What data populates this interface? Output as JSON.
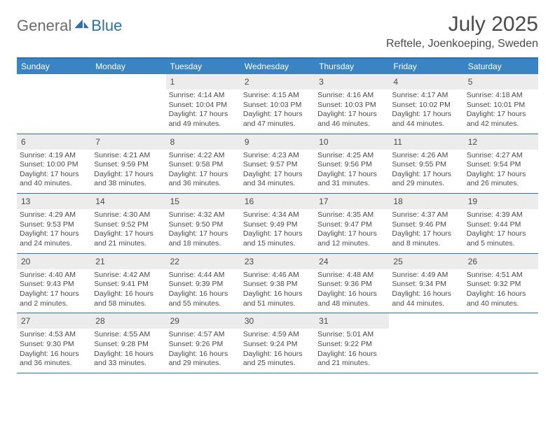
{
  "logo": {
    "text1": "General",
    "text2": "Blue",
    "icon_color": "#2f6fa8"
  },
  "title": "July 2025",
  "location": "Reftele, Joenkoeping, Sweden",
  "colors": {
    "header_bar": "#3b84c4",
    "border": "#2f6fa8",
    "daynum_bg": "#ececec",
    "text": "#4a4a4a",
    "logo_gray": "#6b6b6b"
  },
  "weekdays": [
    "Sunday",
    "Monday",
    "Tuesday",
    "Wednesday",
    "Thursday",
    "Friday",
    "Saturday"
  ],
  "weeks": [
    [
      null,
      null,
      {
        "n": "1",
        "sr": "4:14 AM",
        "ss": "10:04 PM",
        "dl": "17 hours and 49 minutes."
      },
      {
        "n": "2",
        "sr": "4:15 AM",
        "ss": "10:03 PM",
        "dl": "17 hours and 47 minutes."
      },
      {
        "n": "3",
        "sr": "4:16 AM",
        "ss": "10:03 PM",
        "dl": "17 hours and 46 minutes."
      },
      {
        "n": "4",
        "sr": "4:17 AM",
        "ss": "10:02 PM",
        "dl": "17 hours and 44 minutes."
      },
      {
        "n": "5",
        "sr": "4:18 AM",
        "ss": "10:01 PM",
        "dl": "17 hours and 42 minutes."
      }
    ],
    [
      {
        "n": "6",
        "sr": "4:19 AM",
        "ss": "10:00 PM",
        "dl": "17 hours and 40 minutes."
      },
      {
        "n": "7",
        "sr": "4:21 AM",
        "ss": "9:59 PM",
        "dl": "17 hours and 38 minutes."
      },
      {
        "n": "8",
        "sr": "4:22 AM",
        "ss": "9:58 PM",
        "dl": "17 hours and 36 minutes."
      },
      {
        "n": "9",
        "sr": "4:23 AM",
        "ss": "9:57 PM",
        "dl": "17 hours and 34 minutes."
      },
      {
        "n": "10",
        "sr": "4:25 AM",
        "ss": "9:56 PM",
        "dl": "17 hours and 31 minutes."
      },
      {
        "n": "11",
        "sr": "4:26 AM",
        "ss": "9:55 PM",
        "dl": "17 hours and 29 minutes."
      },
      {
        "n": "12",
        "sr": "4:27 AM",
        "ss": "9:54 PM",
        "dl": "17 hours and 26 minutes."
      }
    ],
    [
      {
        "n": "13",
        "sr": "4:29 AM",
        "ss": "9:53 PM",
        "dl": "17 hours and 24 minutes."
      },
      {
        "n": "14",
        "sr": "4:30 AM",
        "ss": "9:52 PM",
        "dl": "17 hours and 21 minutes."
      },
      {
        "n": "15",
        "sr": "4:32 AM",
        "ss": "9:50 PM",
        "dl": "17 hours and 18 minutes."
      },
      {
        "n": "16",
        "sr": "4:34 AM",
        "ss": "9:49 PM",
        "dl": "17 hours and 15 minutes."
      },
      {
        "n": "17",
        "sr": "4:35 AM",
        "ss": "9:47 PM",
        "dl": "17 hours and 12 minutes."
      },
      {
        "n": "18",
        "sr": "4:37 AM",
        "ss": "9:46 PM",
        "dl": "17 hours and 8 minutes."
      },
      {
        "n": "19",
        "sr": "4:39 AM",
        "ss": "9:44 PM",
        "dl": "17 hours and 5 minutes."
      }
    ],
    [
      {
        "n": "20",
        "sr": "4:40 AM",
        "ss": "9:43 PM",
        "dl": "17 hours and 2 minutes."
      },
      {
        "n": "21",
        "sr": "4:42 AM",
        "ss": "9:41 PM",
        "dl": "16 hours and 58 minutes."
      },
      {
        "n": "22",
        "sr": "4:44 AM",
        "ss": "9:39 PM",
        "dl": "16 hours and 55 minutes."
      },
      {
        "n": "23",
        "sr": "4:46 AM",
        "ss": "9:38 PM",
        "dl": "16 hours and 51 minutes."
      },
      {
        "n": "24",
        "sr": "4:48 AM",
        "ss": "9:36 PM",
        "dl": "16 hours and 48 minutes."
      },
      {
        "n": "25",
        "sr": "4:49 AM",
        "ss": "9:34 PM",
        "dl": "16 hours and 44 minutes."
      },
      {
        "n": "26",
        "sr": "4:51 AM",
        "ss": "9:32 PM",
        "dl": "16 hours and 40 minutes."
      }
    ],
    [
      {
        "n": "27",
        "sr": "4:53 AM",
        "ss": "9:30 PM",
        "dl": "16 hours and 36 minutes."
      },
      {
        "n": "28",
        "sr": "4:55 AM",
        "ss": "9:28 PM",
        "dl": "16 hours and 33 minutes."
      },
      {
        "n": "29",
        "sr": "4:57 AM",
        "ss": "9:26 PM",
        "dl": "16 hours and 29 minutes."
      },
      {
        "n": "30",
        "sr": "4:59 AM",
        "ss": "9:24 PM",
        "dl": "16 hours and 25 minutes."
      },
      {
        "n": "31",
        "sr": "5:01 AM",
        "ss": "9:22 PM",
        "dl": "16 hours and 21 minutes."
      },
      null,
      null
    ]
  ],
  "labels": {
    "sunrise": "Sunrise:",
    "sunset": "Sunset:",
    "daylight": "Daylight:"
  }
}
